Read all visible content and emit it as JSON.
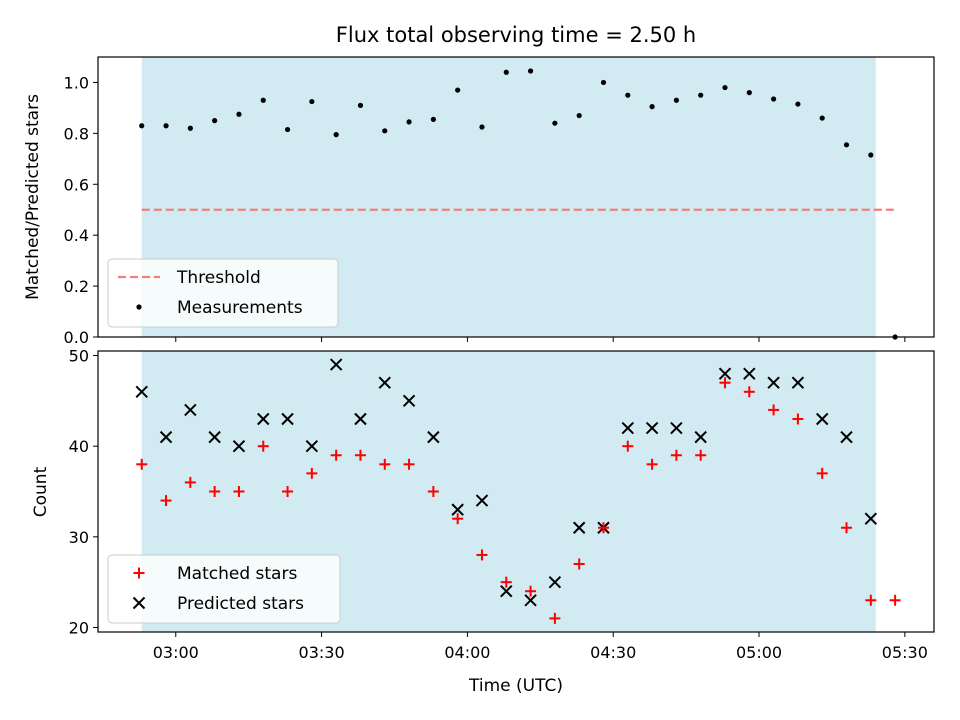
{
  "figure": {
    "title": "Flux total observing time = 2.50 h",
    "xlabel": "Time (UTC)"
  },
  "colors": {
    "shade": "#add8e6",
    "threshold": "#f08080",
    "measurement": "#000000",
    "matched": "#ff0000",
    "predicted": "#000000"
  },
  "chart_data": [
    {
      "type": "scatter",
      "ylabel": "Matched/Predicted stars",
      "ylim": [
        0.0,
        1.1
      ],
      "yticks": [
        0.0,
        0.2,
        0.4,
        0.6,
        0.8,
        1.0
      ],
      "xlim": [
        "02:44",
        "05:36"
      ],
      "xticks": [
        "03:00",
        "03:30",
        "04:00",
        "04:30",
        "05:00",
        "05:30"
      ],
      "observing_window": [
        "02:53",
        "05:24"
      ],
      "threshold": {
        "name": "Threshold",
        "value": 0.5,
        "x_range": [
          "02:53",
          "05:28"
        ]
      },
      "series": [
        {
          "name": "Measurements",
          "x": [
            "02:53",
            "02:58",
            "03:03",
            "03:08",
            "03:13",
            "03:18",
            "03:23",
            "03:28",
            "03:33",
            "03:38",
            "03:43",
            "03:48",
            "03:53",
            "03:58",
            "04:03",
            "04:08",
            "04:13",
            "04:18",
            "04:23",
            "04:28",
            "04:33",
            "04:38",
            "04:43",
            "04:48",
            "04:53",
            "04:58",
            "05:03",
            "05:08",
            "05:13",
            "05:18",
            "05:23",
            "05:28"
          ],
          "y": [
            0.83,
            0.83,
            0.82,
            0.85,
            0.875,
            0.93,
            0.815,
            0.925,
            0.795,
            0.91,
            0.81,
            0.845,
            0.855,
            0.97,
            0.825,
            1.04,
            1.045,
            0.84,
            0.87,
            1.0,
            0.95,
            0.905,
            0.93,
            0.95,
            0.98,
            0.96,
            0.935,
            0.915,
            0.86,
            0.755,
            0.715,
            0.0
          ]
        }
      ],
      "legend": "lower-left"
    },
    {
      "type": "scatter",
      "ylabel": "Count",
      "ylim": [
        19.5,
        50.5
      ],
      "yticks": [
        20,
        30,
        40,
        50
      ],
      "xlim": [
        "02:44",
        "05:36"
      ],
      "xticks": [
        "03:00",
        "03:30",
        "04:00",
        "04:30",
        "05:00",
        "05:30"
      ],
      "observing_window": [
        "02:53",
        "05:24"
      ],
      "series": [
        {
          "name": "Matched stars",
          "x": [
            "02:53",
            "02:58",
            "03:03",
            "03:08",
            "03:13",
            "03:18",
            "03:23",
            "03:28",
            "03:33",
            "03:38",
            "03:43",
            "03:48",
            "03:53",
            "03:58",
            "04:03",
            "04:08",
            "04:13",
            "04:18",
            "04:23",
            "04:28",
            "04:33",
            "04:38",
            "04:43",
            "04:48",
            "04:53",
            "04:58",
            "05:03",
            "05:08",
            "05:13",
            "05:18",
            "05:23",
            "05:28"
          ],
          "y": [
            38,
            34,
            36,
            35,
            35,
            40,
            35,
            37,
            39,
            39,
            38,
            38,
            35,
            32,
            28,
            25,
            24,
            21,
            27,
            31,
            40,
            38,
            39,
            39,
            47,
            46,
            44,
            43,
            37,
            31,
            23,
            23
          ]
        },
        {
          "name": "Predicted stars",
          "x": [
            "02:53",
            "02:58",
            "03:03",
            "03:08",
            "03:13",
            "03:18",
            "03:23",
            "03:28",
            "03:33",
            "03:38",
            "03:43",
            "03:48",
            "03:53",
            "03:58",
            "04:03",
            "04:08",
            "04:13",
            "04:18",
            "04:23",
            "04:28",
            "04:33",
            "04:38",
            "04:43",
            "04:48",
            "04:53",
            "04:58",
            "05:03",
            "05:08",
            "05:13",
            "05:18",
            "05:23"
          ],
          "y": [
            46,
            41,
            44,
            41,
            40,
            43,
            43,
            40,
            49,
            43,
            47,
            45,
            41,
            33,
            34,
            24,
            23,
            25,
            31,
            31,
            42,
            42,
            42,
            41,
            48,
            48,
            47,
            47,
            43,
            41,
            32
          ]
        }
      ],
      "legend": "lower-left"
    }
  ]
}
